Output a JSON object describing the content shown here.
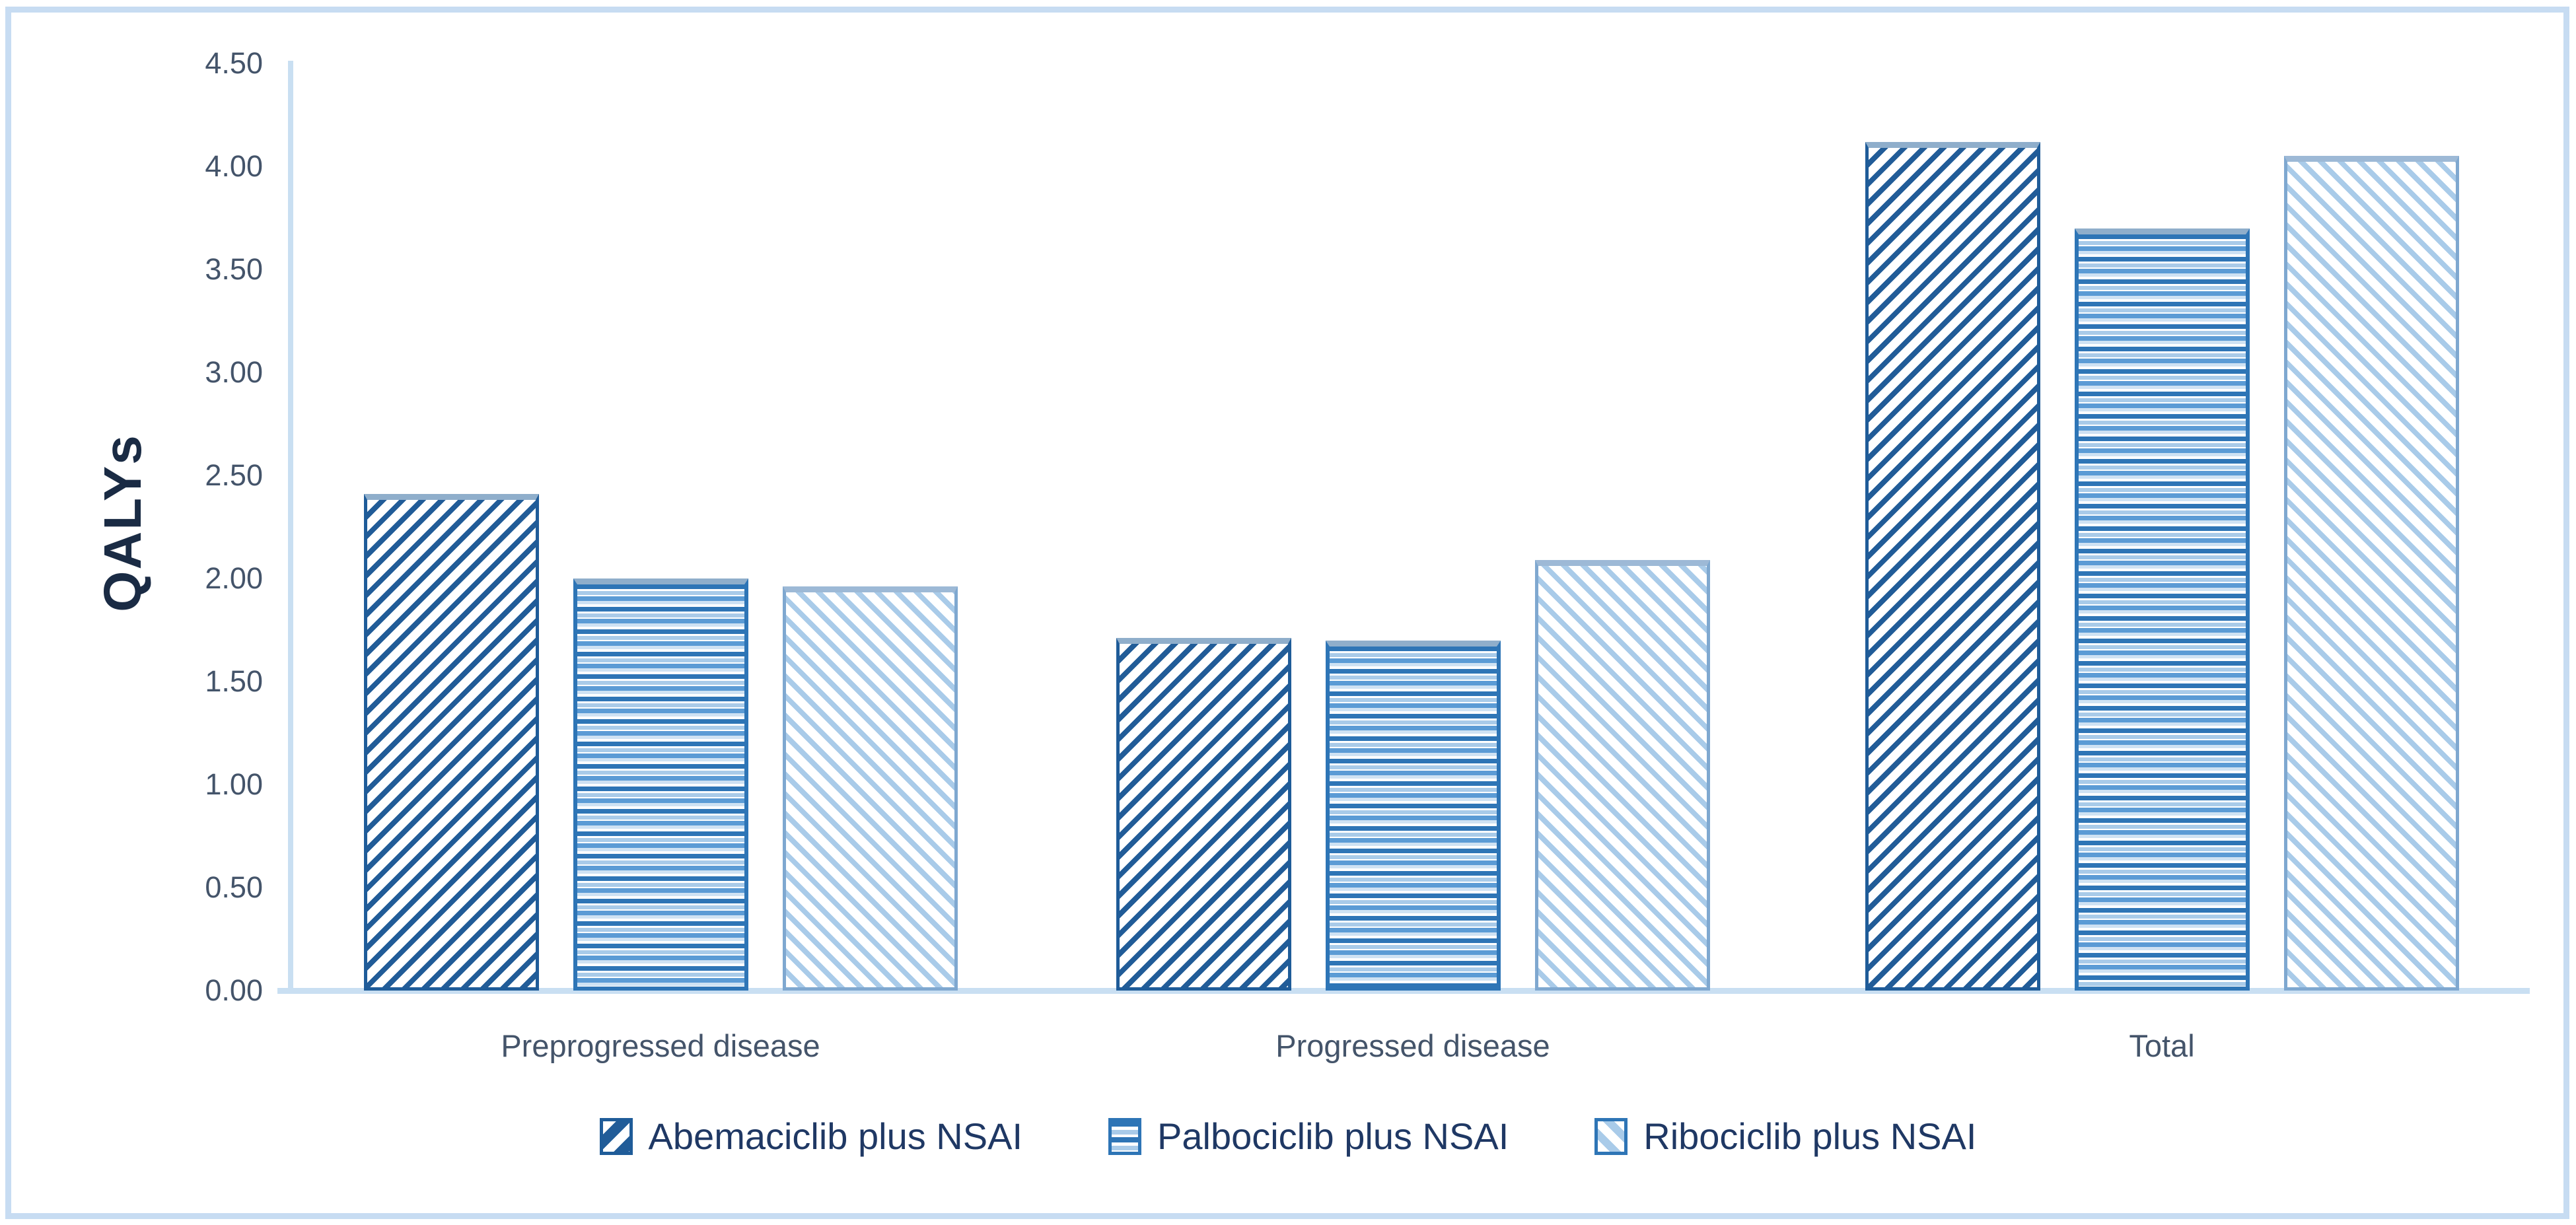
{
  "chart_data": {
    "type": "bar",
    "title": "",
    "ylabel": "QALYs",
    "xlabel": "",
    "categories": [
      "Preprogressed disease",
      "Progressed disease",
      "Total"
    ],
    "series": [
      {
        "name": "Abemaciclib plus NSAI",
        "values": [
          2.41,
          1.71,
          4.12
        ]
      },
      {
        "name": "Palbociclib plus NSAI",
        "values": [
          2.0,
          1.7,
          3.7
        ]
      },
      {
        "name": "Ribociclib plus NSAI",
        "values": [
          1.96,
          2.09,
          4.05
        ]
      }
    ],
    "ylim": [
      0,
      4.5
    ],
    "ytick_step": 0.5,
    "ytick_labels": [
      "0.00",
      "0.50",
      "1.00",
      "1.50",
      "2.00",
      "2.50",
      "3.00",
      "3.50",
      "4.00",
      "4.50"
    ],
    "grid": false,
    "legend_position": "bottom",
    "colors": {
      "abemaciclib_hatch": "#215C98",
      "palbociclib_stripe_dark": "#2E75B6",
      "palbociclib_stripe_light": "#A9CBE9",
      "ribociclib_hatch": "#A9CBE9",
      "bar_top_cap": "#8FAECB",
      "axis_line": "#C9DFF2",
      "tick_text": "#44546A",
      "category_text": "#44546A",
      "legend_text": "#1F3864",
      "y_title_text": "#1A2B44",
      "outer_frame": "#C7DCF2",
      "background": "#FFFFFF"
    }
  }
}
